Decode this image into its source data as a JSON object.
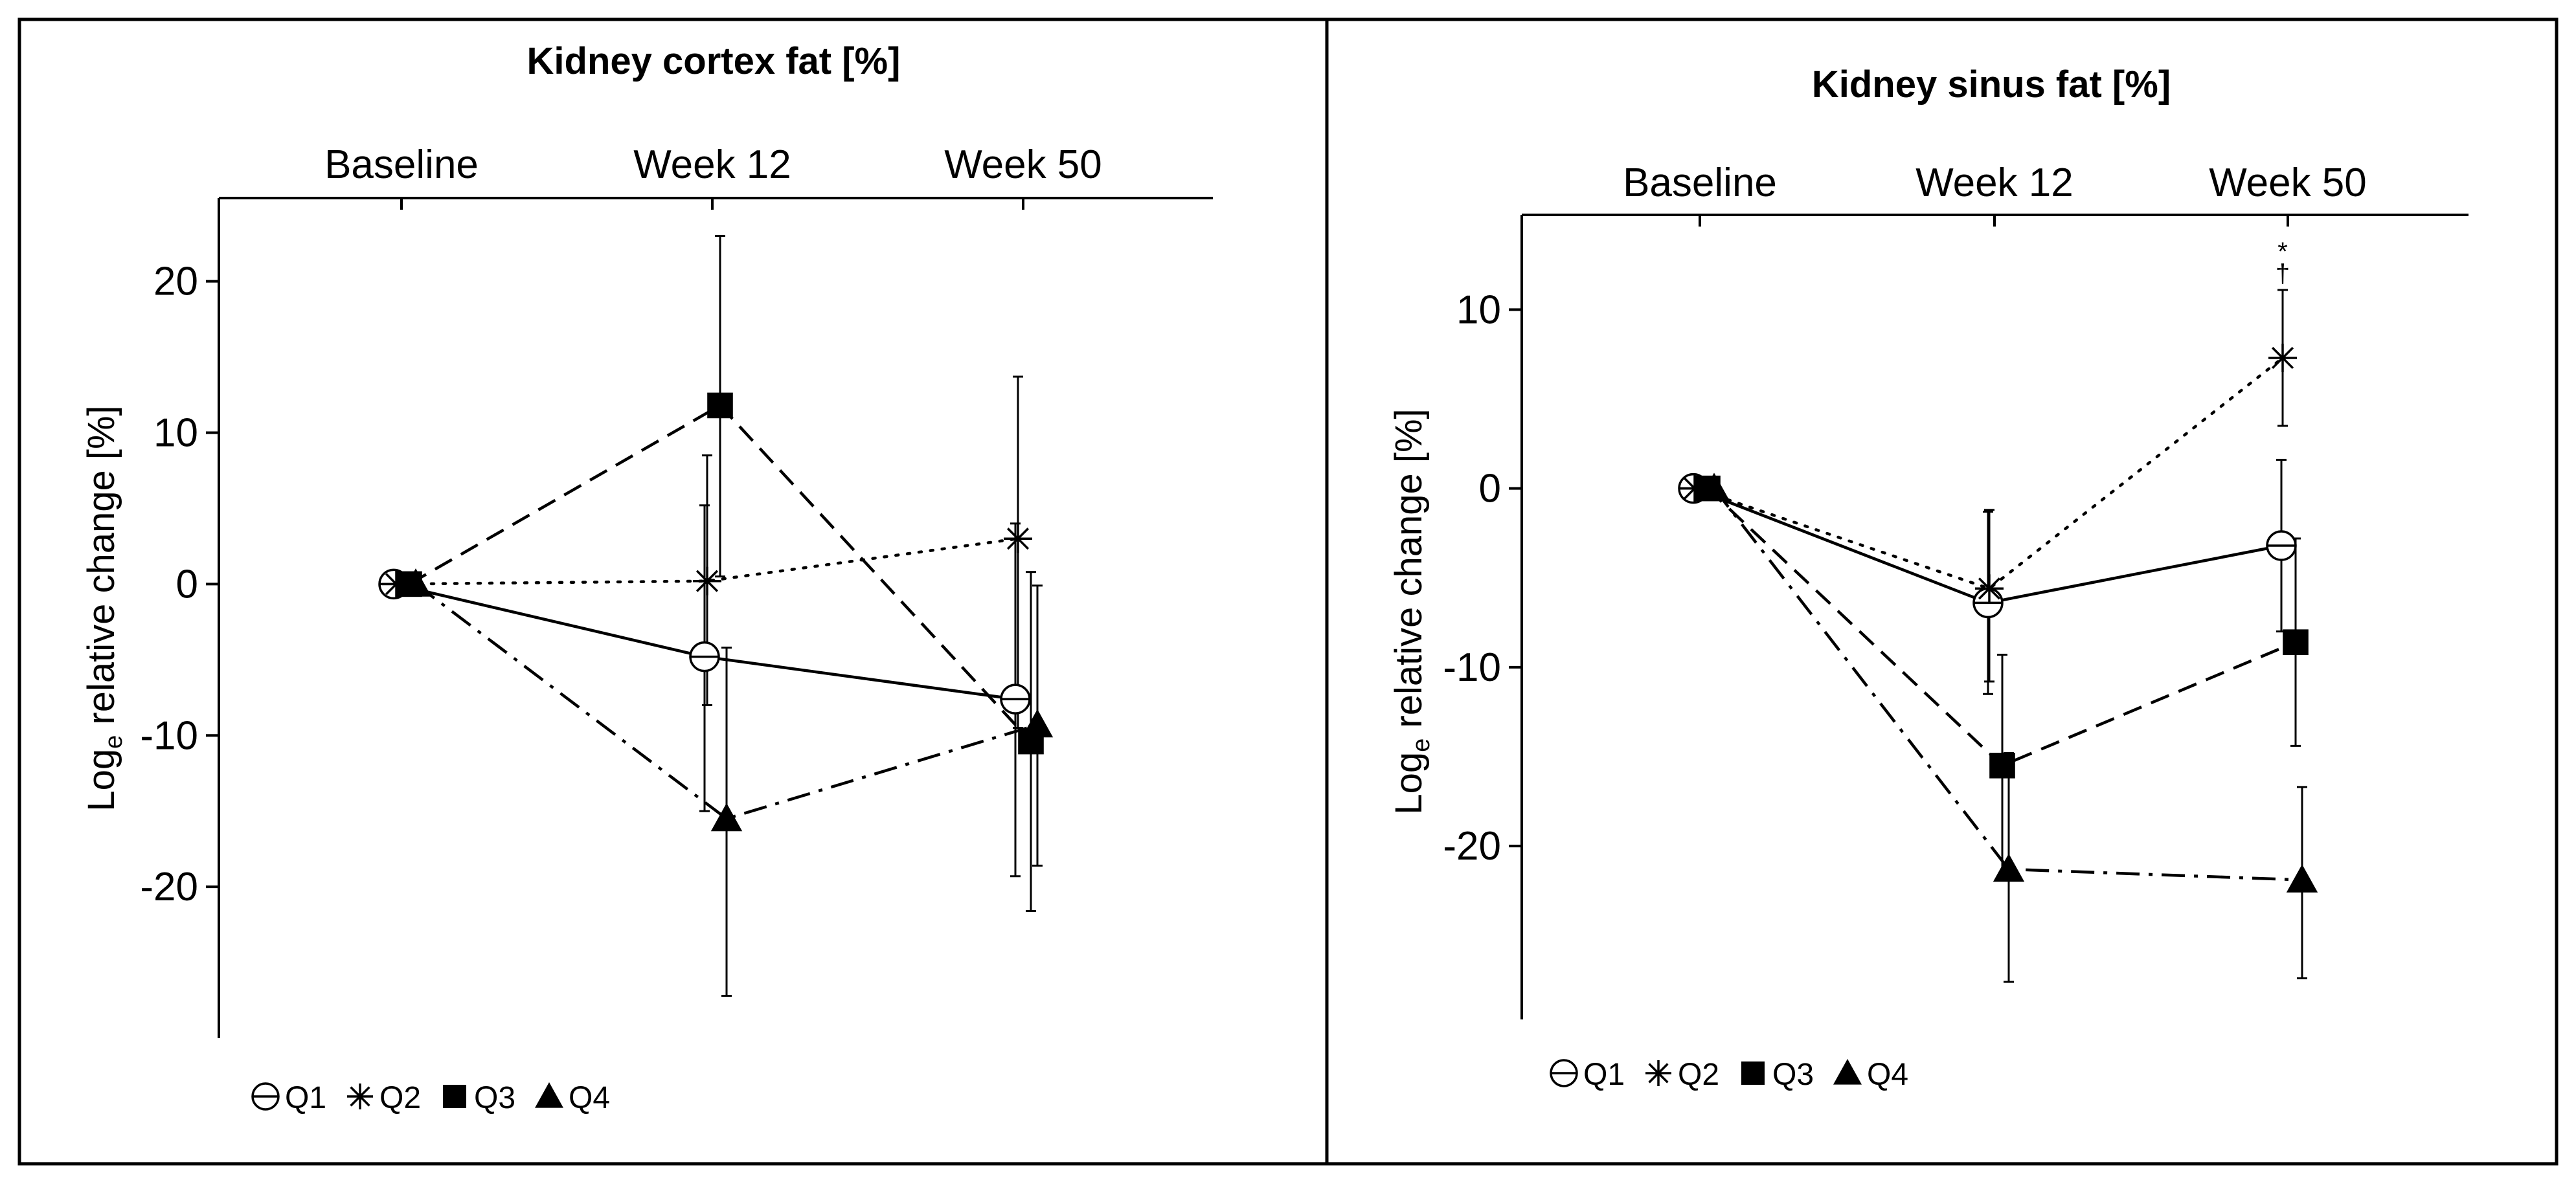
{
  "chart_data": [
    {
      "type": "line",
      "title": "Kidney cortex fat [%]",
      "ylabel": "Log",
      "ylabel_subscript": "e",
      "ylabel_rest": " relative change [%]",
      "categories": [
        "Baseline",
        "Week 12",
        "Week 50"
      ],
      "yticks": [
        20,
        10,
        0,
        -10,
        -20
      ],
      "ytick_labels": [
        "20",
        "10",
        "0",
        "-10",
        "-20"
      ],
      "ylim": [
        -30,
        25.5
      ],
      "grid": false,
      "legend_position": "bottom-left",
      "series": [
        {
          "name": "Q1",
          "marker": "open-circle",
          "line": "solid",
          "values": [
            0,
            -4.8,
            -7.6
          ],
          "lower": [
            0,
            -15.0,
            -19.3
          ],
          "upper": [
            0,
            5.2,
            4.0
          ]
        },
        {
          "name": "Q2",
          "marker": "asterisk",
          "line": "dotted",
          "values": [
            0,
            0.2,
            3.0
          ],
          "lower": [
            0,
            -8.0,
            -9.5
          ],
          "upper": [
            0,
            8.5,
            13.7
          ]
        },
        {
          "name": "Q3",
          "marker": "filled-square",
          "line": "dashed",
          "values": [
            0,
            11.8,
            -10.4
          ],
          "lower": [
            0,
            0.5,
            -21.6
          ],
          "upper": [
            0,
            23.0,
            0.8
          ]
        },
        {
          "name": "Q4",
          "marker": "filled-triangle",
          "line": "dashdot",
          "values": [
            0,
            -15.5,
            -9.3
          ],
          "lower": [
            0,
            -27.2,
            -18.6
          ],
          "upper": [
            0,
            -4.2,
            -0.1
          ]
        }
      ],
      "annotations": []
    },
    {
      "type": "line",
      "title": "Kidney sinus fat [%]",
      "ylabel": "Log",
      "ylabel_subscript": "e",
      "ylabel_rest": " relative change [%]",
      "categories": [
        "Baseline",
        "Week 12",
        "Week 50"
      ],
      "yticks": [
        10,
        0,
        -10,
        -20
      ],
      "ytick_labels": [
        "10",
        "0",
        "-10",
        "-20"
      ],
      "ylim": [
        -29.7,
        15.3
      ],
      "grid": false,
      "legend_position": "bottom-left",
      "series": [
        {
          "name": "Q1",
          "marker": "open-circle",
          "line": "solid",
          "values": [
            0,
            -6.4,
            -3.2
          ],
          "lower": [
            0,
            -11.5,
            -8.0
          ],
          "upper": [
            0,
            -1.3,
            1.6
          ]
        },
        {
          "name": "Q2",
          "marker": "asterisk",
          "line": "dotted",
          "values": [
            0,
            -5.6,
            7.3
          ],
          "lower": [
            0,
            -10.8,
            3.5
          ],
          "upper": [
            0,
            -1.2,
            11.1
          ]
        },
        {
          "name": "Q3",
          "marker": "filled-square",
          "line": "dashed",
          "values": [
            0,
            -15.5,
            -8.6
          ],
          "lower": [
            0,
            -21.7,
            -14.4
          ],
          "upper": [
            0,
            -9.3,
            -2.8
          ]
        },
        {
          "name": "Q4",
          "marker": "filled-triangle",
          "line": "dashdot",
          "values": [
            0,
            -21.3,
            -21.9
          ],
          "lower": [
            0,
            -27.6,
            -27.4
          ],
          "upper": [
            0,
            -14.8,
            -16.7
          ]
        }
      ],
      "annotations": [
        {
          "series": "Q2",
          "category": "Week 50",
          "symbols": [
            "*",
            "†"
          ]
        }
      ]
    }
  ]
}
